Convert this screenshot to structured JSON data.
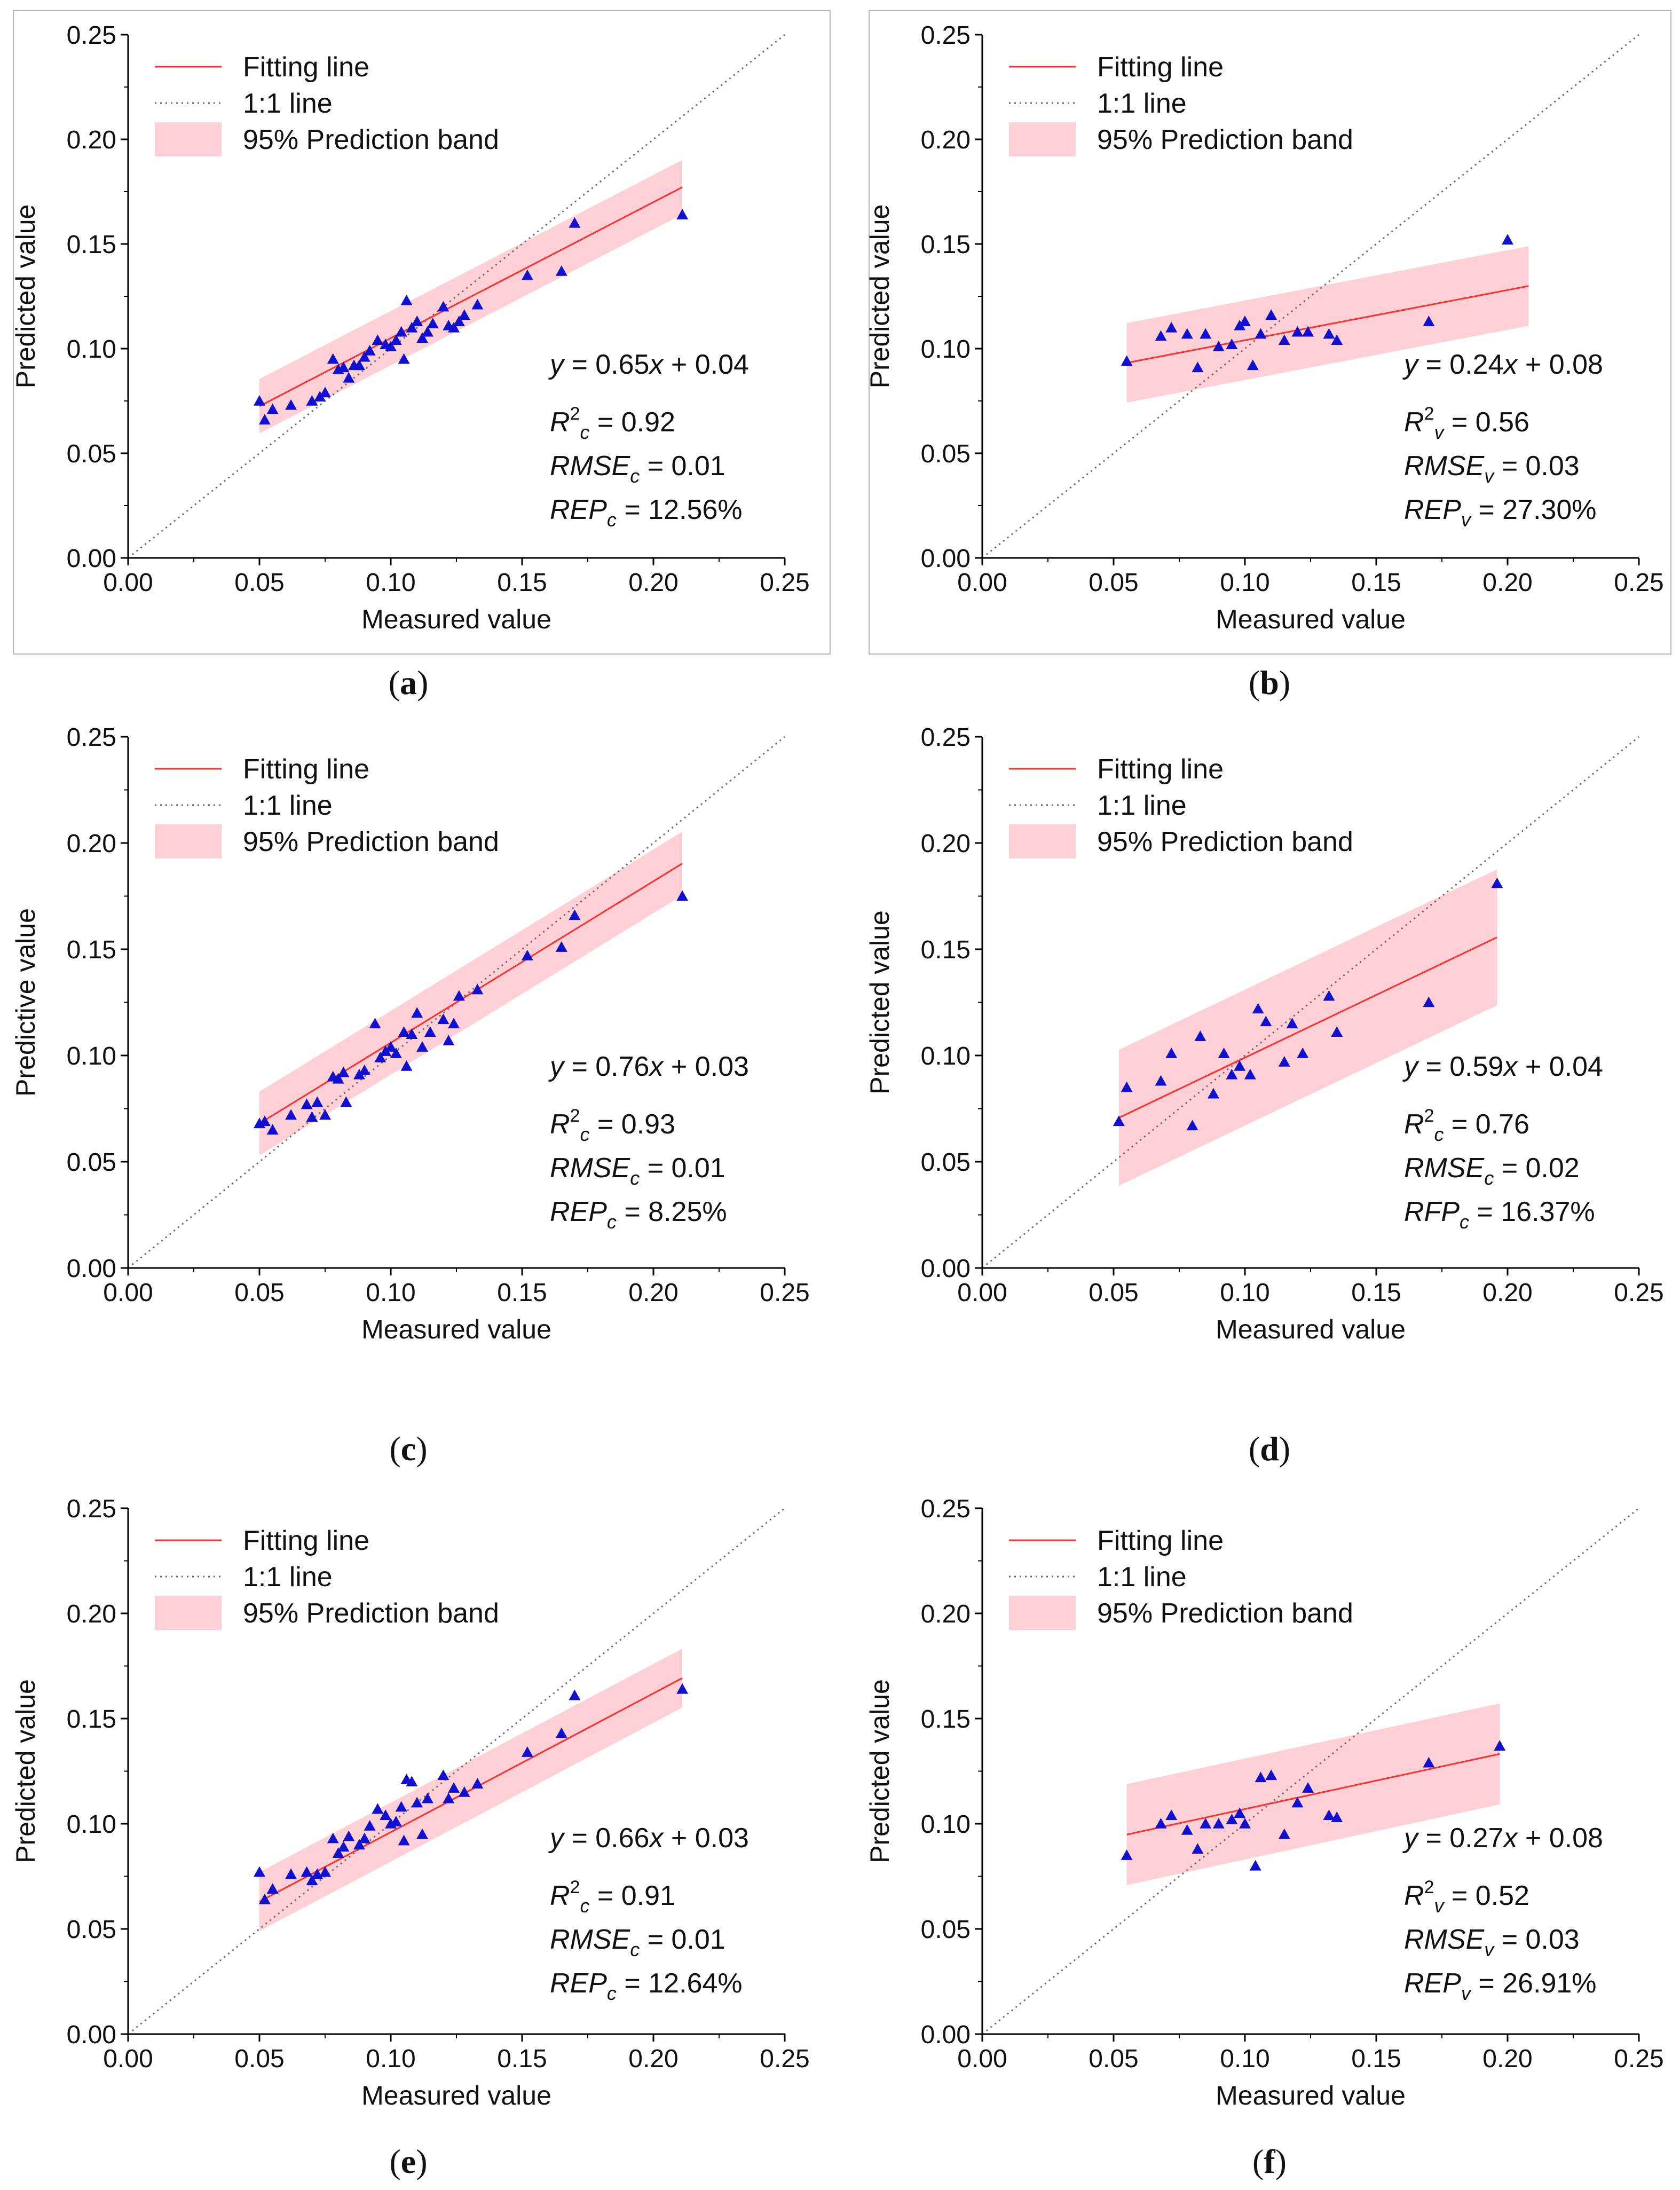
{
  "colors": {
    "fit_line": "#ff3030",
    "band": "#ffc0c8",
    "one_to_one": "#6a6a6a",
    "points": "#1010d0",
    "axis": "#000000"
  },
  "legend": {
    "fit": "Fitting line",
    "one": "1:1 line",
    "band": "95% Prediction band"
  },
  "chart_data": [
    {
      "type": "scatter",
      "panel": "(a)",
      "xlabel": "Measured value",
      "ylabel": "Predicted value",
      "xlim": [
        0,
        0.25
      ],
      "ylim": [
        0,
        0.25
      ],
      "xticks": [
        "0.00",
        "0.05",
        "0.10",
        "0.15",
        "0.20",
        "0.25"
      ],
      "yticks": [
        "0.00",
        "0.05",
        "0.10",
        "0.15",
        "0.20",
        "0.25"
      ],
      "equation": [
        "y",
        " = 0.65",
        "x",
        " + 0.04"
      ],
      "stats": [
        {
          "name": "R",
          "sup": "2",
          "sub": "c",
          "value": " = 0.92"
        },
        {
          "name": "RMSE",
          "sup": "",
          "sub": "c",
          "value": " = 0.01"
        },
        {
          "name": "REP",
          "sup": "",
          "sub": "c",
          "value": " = 12.56%"
        }
      ],
      "fit": {
        "slope": 0.65,
        "intercept": 0.04,
        "x_range": [
          0.05,
          0.211
        ]
      },
      "band_halfwidth": 0.013,
      "points": [
        [
          0.05,
          0.075
        ],
        [
          0.052,
          0.066
        ],
        [
          0.055,
          0.071
        ],
        [
          0.062,
          0.073
        ],
        [
          0.07,
          0.075
        ],
        [
          0.073,
          0.077
        ],
        [
          0.075,
          0.079
        ],
        [
          0.078,
          0.095
        ],
        [
          0.08,
          0.09
        ],
        [
          0.082,
          0.091
        ],
        [
          0.084,
          0.086
        ],
        [
          0.086,
          0.092
        ],
        [
          0.088,
          0.092
        ],
        [
          0.09,
          0.096
        ],
        [
          0.092,
          0.099
        ],
        [
          0.095,
          0.104
        ],
        [
          0.098,
          0.102
        ],
        [
          0.1,
          0.101
        ],
        [
          0.102,
          0.104
        ],
        [
          0.104,
          0.108
        ],
        [
          0.105,
          0.095
        ],
        [
          0.106,
          0.123
        ],
        [
          0.108,
          0.11
        ],
        [
          0.11,
          0.113
        ],
        [
          0.112,
          0.105
        ],
        [
          0.114,
          0.108
        ],
        [
          0.116,
          0.112
        ],
        [
          0.12,
          0.12
        ],
        [
          0.122,
          0.111
        ],
        [
          0.124,
          0.11
        ],
        [
          0.126,
          0.113
        ],
        [
          0.128,
          0.116
        ],
        [
          0.133,
          0.121
        ],
        [
          0.152,
          0.135
        ],
        [
          0.165,
          0.137
        ],
        [
          0.17,
          0.16
        ],
        [
          0.211,
          0.164
        ]
      ]
    },
    {
      "type": "scatter",
      "panel": "(b)",
      "xlabel": "Measured value",
      "ylabel": "Predicted value",
      "xlim": [
        0,
        0.25
      ],
      "ylim": [
        0,
        0.25
      ],
      "xticks": [
        "0.00",
        "0.05",
        "0.10",
        "0.15",
        "0.20",
        "0.25"
      ],
      "yticks": [
        "0.00",
        "0.05",
        "0.10",
        "0.15",
        "0.20",
        "0.25"
      ],
      "equation": [
        "y",
        " = 0.24",
        "x",
        " + 0.08"
      ],
      "stats": [
        {
          "name": "R",
          "sup": "2",
          "sub": "v",
          "value": " = 0.56"
        },
        {
          "name": "RMSE",
          "sup": "",
          "sub": "v",
          "value": " = 0.03"
        },
        {
          "name": "REP",
          "sup": "",
          "sub": "v",
          "value": " = 27.30%"
        }
      ],
      "fit": {
        "slope": 0.24,
        "intercept": 0.08,
        "x_range": [
          0.055,
          0.208
        ]
      },
      "band_halfwidth": 0.019,
      "points": [
        [
          0.055,
          0.094
        ],
        [
          0.068,
          0.106
        ],
        [
          0.072,
          0.11
        ],
        [
          0.078,
          0.107
        ],
        [
          0.082,
          0.091
        ],
        [
          0.085,
          0.107
        ],
        [
          0.09,
          0.101
        ],
        [
          0.095,
          0.102
        ],
        [
          0.098,
          0.111
        ],
        [
          0.1,
          0.113
        ],
        [
          0.103,
          0.092
        ],
        [
          0.106,
          0.107
        ],
        [
          0.11,
          0.116
        ],
        [
          0.115,
          0.104
        ],
        [
          0.12,
          0.108
        ],
        [
          0.124,
          0.108
        ],
        [
          0.132,
          0.107
        ],
        [
          0.135,
          0.104
        ],
        [
          0.17,
          0.113
        ],
        [
          0.2,
          0.152
        ]
      ]
    },
    {
      "type": "scatter",
      "panel": "(c)",
      "xlabel": "Measured value",
      "ylabel": "Predictive value",
      "xlim": [
        0,
        0.25
      ],
      "ylim": [
        0,
        0.25
      ],
      "xticks": [
        "0.00",
        "0.05",
        "0.10",
        "0.15",
        "0.20",
        "0.25"
      ],
      "yticks": [
        "0.00",
        "0.05",
        "0.10",
        "0.15",
        "0.20",
        "0.25"
      ],
      "equation": [
        "y",
        " = 0.76",
        "x",
        " + 0.03"
      ],
      "stats": [
        {
          "name": "R",
          "sup": "2",
          "sub": "c",
          "value": " = 0.93"
        },
        {
          "name": "RMSE",
          "sup": "",
          "sub": "c",
          "value": " = 0.01"
        },
        {
          "name": "REP",
          "sup": "",
          "sub": "c",
          "value": " = 8.25%"
        }
      ],
      "fit": {
        "slope": 0.76,
        "intercept": 0.03,
        "x_range": [
          0.05,
          0.211
        ]
      },
      "band_halfwidth": 0.015,
      "points": [
        [
          0.05,
          0.068
        ],
        [
          0.052,
          0.069
        ],
        [
          0.055,
          0.065
        ],
        [
          0.062,
          0.072
        ],
        [
          0.068,
          0.077
        ],
        [
          0.07,
          0.071
        ],
        [
          0.072,
          0.078
        ],
        [
          0.075,
          0.072
        ],
        [
          0.078,
          0.09
        ],
        [
          0.08,
          0.089
        ],
        [
          0.082,
          0.092
        ],
        [
          0.083,
          0.078
        ],
        [
          0.088,
          0.091
        ],
        [
          0.09,
          0.093
        ],
        [
          0.094,
          0.115
        ],
        [
          0.096,
          0.099
        ],
        [
          0.098,
          0.102
        ],
        [
          0.1,
          0.104
        ],
        [
          0.102,
          0.101
        ],
        [
          0.105,
          0.111
        ],
        [
          0.106,
          0.095
        ],
        [
          0.108,
          0.11
        ],
        [
          0.11,
          0.12
        ],
        [
          0.112,
          0.104
        ],
        [
          0.115,
          0.111
        ],
        [
          0.12,
          0.117
        ],
        [
          0.122,
          0.107
        ],
        [
          0.124,
          0.115
        ],
        [
          0.126,
          0.128
        ],
        [
          0.133,
          0.131
        ],
        [
          0.152,
          0.147
        ],
        [
          0.165,
          0.151
        ],
        [
          0.17,
          0.166
        ],
        [
          0.211,
          0.175
        ]
      ]
    },
    {
      "type": "scatter",
      "panel": "(d)",
      "xlabel": "Measured value",
      "ylabel": "Predicted value",
      "xlim": [
        0,
        0.25
      ],
      "ylim": [
        0,
        0.25
      ],
      "xticks": [
        "0.00",
        "0.05",
        "0.10",
        "0.15",
        "0.20",
        "0.25"
      ],
      "yticks": [
        "0.00",
        "0.05",
        "0.10",
        "0.15",
        "0.20",
        "0.25"
      ],
      "equation": [
        "y",
        " = 0.59",
        "x",
        " + 0.04"
      ],
      "stats": [
        {
          "name": "R",
          "sup": "2",
          "sub": "c",
          "value": " = 0.76"
        },
        {
          "name": "RMSE",
          "sup": "",
          "sub": "c",
          "value": " = 0.02"
        },
        {
          "name": "RFP",
          "sup": "",
          "sub": "c",
          "value": " = 16.37%"
        }
      ],
      "fit": {
        "slope": 0.59,
        "intercept": 0.04,
        "x_range": [
          0.052,
          0.196
        ]
      },
      "band_halfwidth": 0.032,
      "points": [
        [
          0.052,
          0.069
        ],
        [
          0.055,
          0.085
        ],
        [
          0.068,
          0.088
        ],
        [
          0.072,
          0.101
        ],
        [
          0.08,
          0.067
        ],
        [
          0.083,
          0.109
        ],
        [
          0.088,
          0.082
        ],
        [
          0.092,
          0.101
        ],
        [
          0.095,
          0.091
        ],
        [
          0.098,
          0.095
        ],
        [
          0.102,
          0.091
        ],
        [
          0.105,
          0.122
        ],
        [
          0.108,
          0.116
        ],
        [
          0.115,
          0.097
        ],
        [
          0.118,
          0.115
        ],
        [
          0.122,
          0.101
        ],
        [
          0.132,
          0.128
        ],
        [
          0.135,
          0.111
        ],
        [
          0.17,
          0.125
        ],
        [
          0.196,
          0.181
        ]
      ]
    },
    {
      "type": "scatter",
      "panel": "(e)",
      "xlabel": "Measured value",
      "ylabel": "Predicted value",
      "xlim": [
        0,
        0.25
      ],
      "ylim": [
        0,
        0.25
      ],
      "xticks": [
        "0.00",
        "0.05",
        "0.10",
        "0.15",
        "0.20",
        "0.25"
      ],
      "yticks": [
        "0.00",
        "0.05",
        "0.10",
        "0.15",
        "0.20",
        "0.25"
      ],
      "equation": [
        "y",
        " = 0.66",
        "x",
        " + 0.03"
      ],
      "stats": [
        {
          "name": "R",
          "sup": "2",
          "sub": "c",
          "value": " = 0.91"
        },
        {
          "name": "RMSE",
          "sup": "",
          "sub": "c",
          "value": " = 0.01"
        },
        {
          "name": "REP",
          "sup": "",
          "sub": "c",
          "value": " = 12.64%"
        }
      ],
      "fit": {
        "slope": 0.66,
        "intercept": 0.03,
        "x_range": [
          0.05,
          0.211
        ]
      },
      "band_halfwidth": 0.014,
      "points": [
        [
          0.05,
          0.077
        ],
        [
          0.052,
          0.064
        ],
        [
          0.055,
          0.069
        ],
        [
          0.062,
          0.076
        ],
        [
          0.068,
          0.077
        ],
        [
          0.07,
          0.073
        ],
        [
          0.072,
          0.076
        ],
        [
          0.075,
          0.077
        ],
        [
          0.078,
          0.093
        ],
        [
          0.08,
          0.086
        ],
        [
          0.082,
          0.089
        ],
        [
          0.084,
          0.094
        ],
        [
          0.088,
          0.09
        ],
        [
          0.09,
          0.093
        ],
        [
          0.092,
          0.099
        ],
        [
          0.095,
          0.107
        ],
        [
          0.098,
          0.104
        ],
        [
          0.1,
          0.1
        ],
        [
          0.102,
          0.101
        ],
        [
          0.104,
          0.108
        ],
        [
          0.105,
          0.092
        ],
        [
          0.106,
          0.121
        ],
        [
          0.108,
          0.12
        ],
        [
          0.11,
          0.11
        ],
        [
          0.112,
          0.095
        ],
        [
          0.114,
          0.112
        ],
        [
          0.12,
          0.123
        ],
        [
          0.122,
          0.112
        ],
        [
          0.124,
          0.117
        ],
        [
          0.128,
          0.115
        ],
        [
          0.133,
          0.119
        ],
        [
          0.152,
          0.134
        ],
        [
          0.165,
          0.143
        ],
        [
          0.17,
          0.161
        ],
        [
          0.211,
          0.164
        ]
      ]
    },
    {
      "type": "scatter",
      "panel": "(f)",
      "xlabel": "Measured value",
      "ylabel": "Predicted value",
      "xlim": [
        0,
        0.25
      ],
      "ylim": [
        0,
        0.25
      ],
      "xticks": [
        "0.00",
        "0.05",
        "0.10",
        "0.15",
        "0.20",
        "0.25"
      ],
      "yticks": [
        "0.00",
        "0.05",
        "0.10",
        "0.15",
        "0.20",
        "0.25"
      ],
      "equation": [
        "y",
        " = 0.27",
        "x",
        " + 0.08"
      ],
      "stats": [
        {
          "name": "R",
          "sup": "2",
          "sub": "v",
          "value": " = 0.52"
        },
        {
          "name": "RMSE",
          "sup": "",
          "sub": "v",
          "value": " = 0.03"
        },
        {
          "name": "REP",
          "sup": "",
          "sub": "v",
          "value": " = 26.91%"
        }
      ],
      "fit": {
        "slope": 0.27,
        "intercept": 0.08,
        "x_range": [
          0.055,
          0.197
        ]
      },
      "band_halfwidth": 0.024,
      "points": [
        [
          0.055,
          0.085
        ],
        [
          0.068,
          0.1
        ],
        [
          0.072,
          0.104
        ],
        [
          0.078,
          0.097
        ],
        [
          0.082,
          0.088
        ],
        [
          0.085,
          0.1
        ],
        [
          0.09,
          0.1
        ],
        [
          0.095,
          0.102
        ],
        [
          0.098,
          0.105
        ],
        [
          0.1,
          0.1
        ],
        [
          0.104,
          0.08
        ],
        [
          0.106,
          0.122
        ],
        [
          0.11,
          0.123
        ],
        [
          0.115,
          0.095
        ],
        [
          0.12,
          0.11
        ],
        [
          0.124,
          0.117
        ],
        [
          0.132,
          0.104
        ],
        [
          0.135,
          0.103
        ],
        [
          0.17,
          0.129
        ],
        [
          0.197,
          0.137
        ]
      ]
    }
  ]
}
